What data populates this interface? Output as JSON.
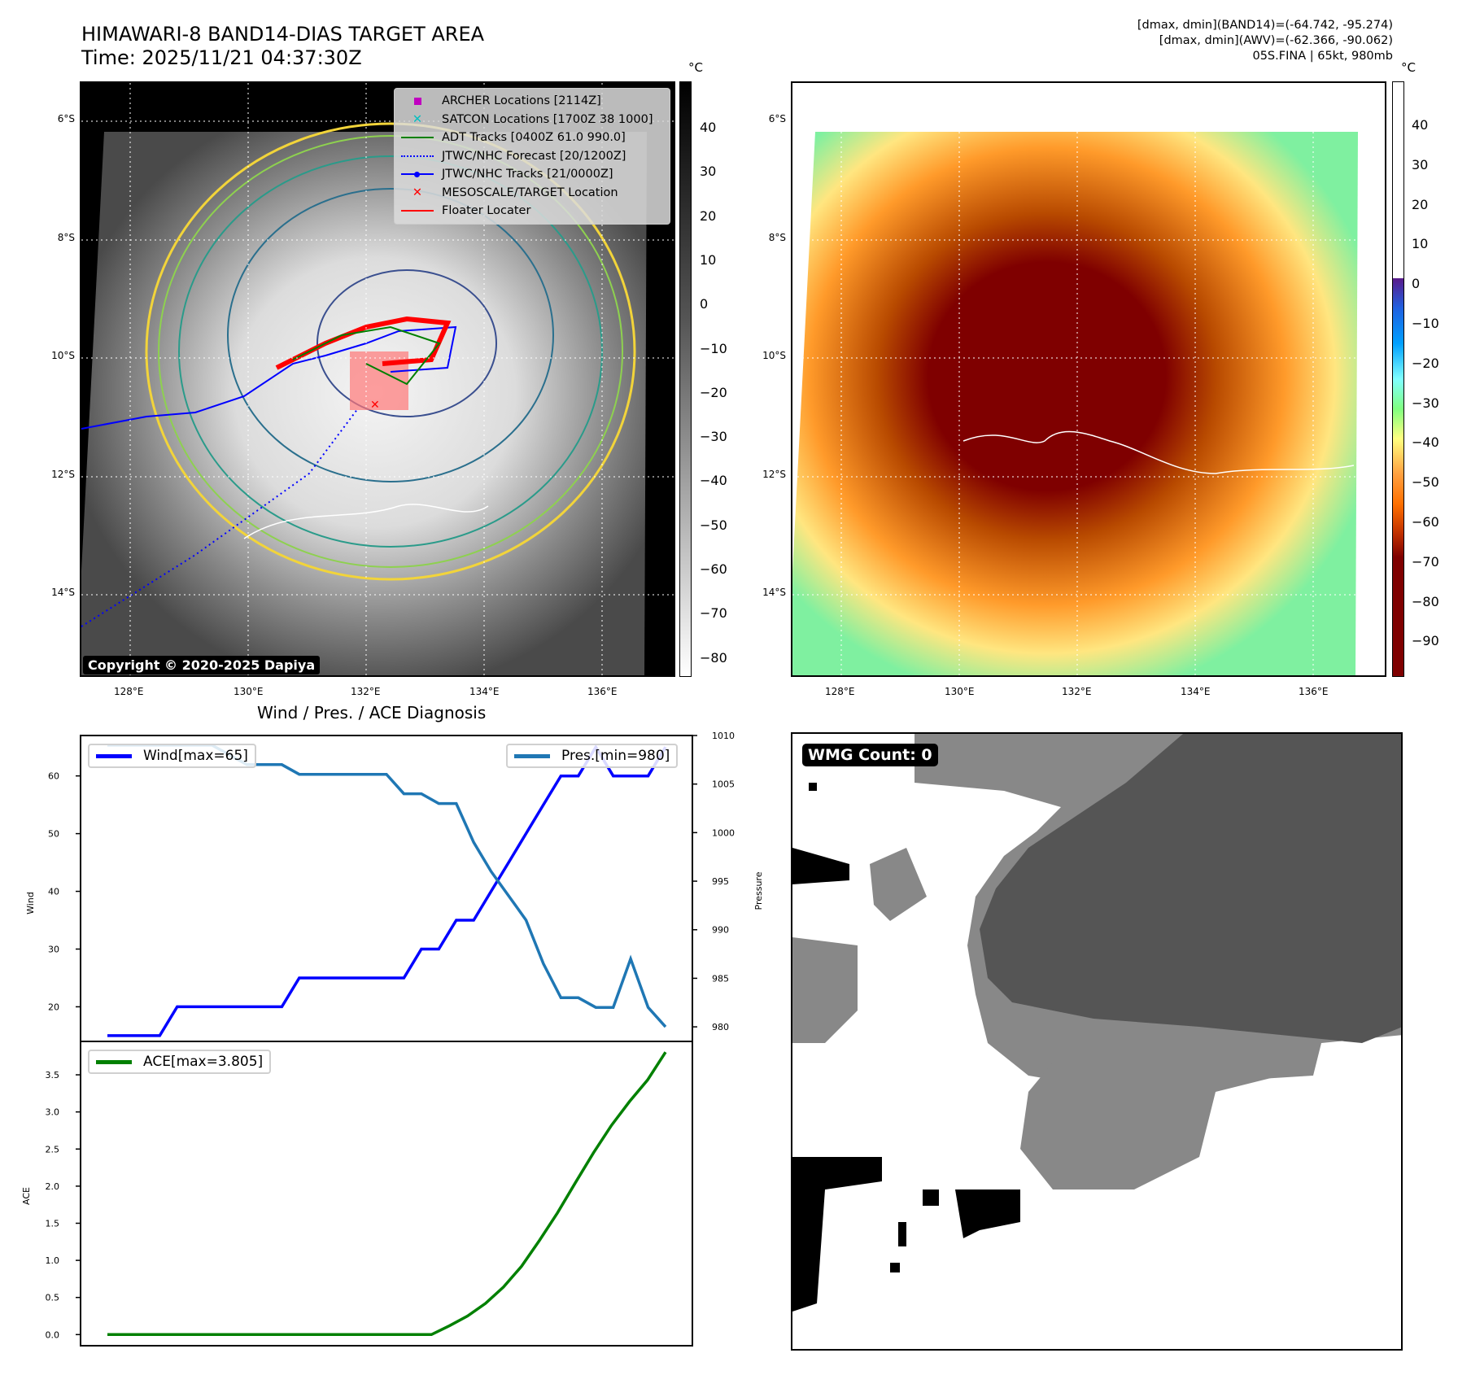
{
  "header": {
    "title": "HIMAWARI-8 BAND14-DIAS TARGET AREA",
    "time": "Time: 2025/11/21 04:37:30Z",
    "info_lines": [
      "[dmax, dmin](BAND14)=(-64.742, -95.274)",
      "[dmax, dmin](AWV)=(-62.366, -90.062)",
      "05S.FINA | 65kt, 980mb"
    ]
  },
  "map_axes": {
    "lat_ticks": [
      "6°S",
      "8°S",
      "10°S",
      "12°S",
      "14°S"
    ],
    "lon_ticks": [
      "128°E",
      "130°E",
      "132°E",
      "134°E",
      "136°E"
    ]
  },
  "left_map": {
    "colorbar_unit": "°C",
    "colorbar_ticks": [
      "40",
      "30",
      "20",
      "10",
      "0",
      "−10",
      "−20",
      "−30",
      "−40",
      "−50",
      "−60",
      "−70",
      "−80"
    ],
    "copyright": "Copyright © 2020-2025 Dapiya",
    "legend": [
      {
        "label": "ARCHER Locations [2114Z]",
        "marker": "square",
        "color": "#c000c0"
      },
      {
        "label": "SATCON Locations [1700Z 38 1000]",
        "marker": "x",
        "color": "#00bfbf"
      },
      {
        "label": "ADT Tracks [0400Z 61.0 990.0]",
        "marker": "line",
        "color": "#008000"
      },
      {
        "label": "JTWC/NHC Forecast [20/1200Z]",
        "marker": "dotted",
        "color": "#0000ff"
      },
      {
        "label": "JTWC/NHC Tracks [21/0000Z]",
        "marker": "line-dot",
        "color": "#0000ff"
      },
      {
        "label": "MESOSCALE/TARGET Location",
        "marker": "x",
        "color": "#ff0000"
      },
      {
        "label": "Floater Locater",
        "marker": "line",
        "color": "#ff0000"
      }
    ]
  },
  "right_map": {
    "colorbar_unit": "°C",
    "colorbar_ticks": [
      "40",
      "30",
      "20",
      "10",
      "0",
      "−10",
      "−20",
      "−30",
      "−40",
      "−50",
      "−60",
      "−70",
      "−80",
      "−90"
    ]
  },
  "wmg_panel": {
    "label": "WMG Count: 0"
  },
  "chart_data": [
    {
      "type": "line",
      "title": "Wind / Pres. / ACE Diagnosis",
      "xlabel": "",
      "ylabel": "Wind",
      "ylabel_right": "Pressure",
      "ylim": [
        14,
        67
      ],
      "ylim_right": [
        978.5,
        1010
      ],
      "yticks": [
        "20",
        "30",
        "40",
        "50",
        "60"
      ],
      "yticks_right": [
        "980",
        "985",
        "990",
        "995",
        "1000",
        "1005",
        "1010"
      ],
      "legend_left": "Wind[max=65]",
      "legend_right": "Pres.[min=980]",
      "series": [
        {
          "name": "Wind[max=65]",
          "axis": "left",
          "color": "#0000ff",
          "values": [
            15,
            15,
            15,
            15,
            20,
            20,
            20,
            20,
            20,
            20,
            20,
            25,
            25,
            25,
            25,
            25,
            25,
            25,
            30,
            30,
            35,
            35,
            40,
            45,
            50,
            55,
            60,
            60,
            65,
            60,
            60,
            60,
            65
          ]
        },
        {
          "name": "Pres.[min=980]",
          "axis": "right",
          "color": "#1f77b4",
          "values": [
            1009,
            1009,
            1009,
            1009,
            1009,
            1009,
            1009,
            1008,
            1007,
            1007,
            1007,
            1006,
            1006,
            1006,
            1006,
            1006,
            1006,
            1004,
            1004,
            1003,
            1003,
            999,
            996,
            993.5,
            991,
            986.5,
            983,
            983,
            982,
            982,
            987,
            982,
            980
          ]
        }
      ]
    },
    {
      "type": "line",
      "xlabel": "",
      "ylabel": "ACE",
      "ylim": [
        -0.15,
        3.95
      ],
      "yticks": [
        "0.0",
        "0.5",
        "1.0",
        "1.5",
        "2.0",
        "2.5",
        "3.0",
        "3.5"
      ],
      "legend": "ACE[max=3.805]",
      "series": [
        {
          "name": "ACE[max=3.805]",
          "color": "#008000",
          "values": [
            0,
            0,
            0,
            0,
            0,
            0,
            0,
            0,
            0,
            0,
            0,
            0,
            0,
            0,
            0,
            0,
            0,
            0,
            0,
            0.12,
            0.25,
            0.42,
            0.64,
            0.92,
            1.27,
            1.64,
            2.05,
            2.45,
            2.82,
            3.14,
            3.43,
            3.805
          ]
        }
      ]
    }
  ]
}
